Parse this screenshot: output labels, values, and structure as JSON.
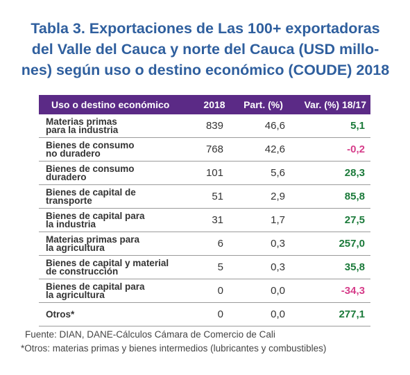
{
  "title": "Tabla 3. Exportaciones de Las 100+ exportadoras del Valle del Cauca y norte del Cauca (USD millo-nes) según uso o destino económico (COUDE) 2018",
  "title_lines": [
    "Tabla 3. Exportaciones de Las 100+ exportadoras",
    "del Valle del Cauca y norte del Cauca (USD millo-",
    "nes) según uso o destino económico (COUDE) 2018"
  ],
  "headers": [
    "Uso o destino económico",
    "2018",
    "Part. (%)",
    "Var. (%) 18/17"
  ],
  "rows": [
    {
      "label_line1": "Materias primas",
      "label_line2": "para la industria",
      "year": "839",
      "part": "46,6",
      "var": "5,1",
      "sign": "pos"
    },
    {
      "label_line1": "Bienes de consumo",
      "label_line2": "no duradero",
      "year": "768",
      "part": "42,6",
      "var": "-0,2",
      "sign": "neg"
    },
    {
      "label_line1": "Bienes de consumo",
      "label_line2": "duradero",
      "year": "101",
      "part": "5,6",
      "var": "28,3",
      "sign": "pos"
    },
    {
      "label_line1": "Bienes de capital de",
      "label_line2": "transporte",
      "year": "51",
      "part": "2,9",
      "var": "85,8",
      "sign": "pos"
    },
    {
      "label_line1": "Bienes de capital para",
      "label_line2": "la industria",
      "year": "31",
      "part": "1,7",
      "var": "27,5",
      "sign": "pos"
    },
    {
      "label_line1": "Materias primas para",
      "label_line2": "la agricultura",
      "year": "6",
      "part": "0,3",
      "var": "257,0",
      "sign": "pos"
    },
    {
      "label_line1": "Bienes de capital y material",
      "label_line2": "de construcción",
      "year": "5",
      "part": "0,3",
      "var": "35,8",
      "sign": "pos"
    },
    {
      "label_line1": "Bienes de capital para",
      "label_line2": "la agricultura",
      "year": "0",
      "part": "0,0",
      "var": "-34,3",
      "sign": "neg"
    },
    {
      "label_line1": "Otros*",
      "label_line2": "",
      "year": "0",
      "part": "0,0",
      "var": "277,1",
      "sign": "pos"
    }
  ],
  "colors": {
    "title": "#2f5f9e",
    "header_bg": "#5b2a86",
    "positive": "#1b7a3a",
    "negative": "#d63d8a"
  },
  "source": "Fuente: DIAN, DANE-Cálculos Cámara de Comercio de Cali",
  "note": "*Otros: materias primas y bienes intermedios (lubricantes y combustibles)"
}
